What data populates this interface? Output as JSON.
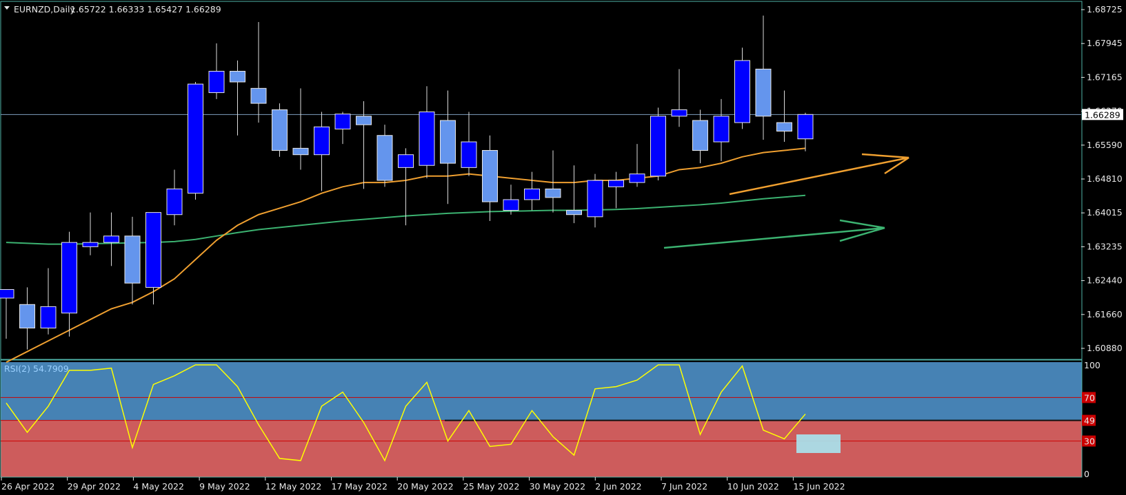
{
  "header": {
    "symbol": "EURNZD,Daily",
    "ohlc": "1.65722 1.66333 1.65427 1.66289"
  },
  "price_axis": {
    "ticks": [
      "1.68725",
      "1.67945",
      "1.67165",
      "1.66370",
      "1.65590",
      "1.64810",
      "1.64015",
      "1.63235",
      "1.62440",
      "1.61660",
      "1.60880"
    ],
    "current_label": "1.66289"
  },
  "rsi": {
    "label": "RSI(2) 54.7909",
    "levels": [
      "100",
      "70",
      "49",
      "30",
      "0"
    ]
  },
  "time_axis": {
    "labels": [
      "26 Apr 2022",
      "29 Apr 2022",
      "4 May 2022",
      "9 May 2022",
      "12 May 2022",
      "17 May 2022",
      "20 May 2022",
      "25 May 2022",
      "30 May 2022",
      "2 Jun 2022",
      "7 Jun 2022",
      "10 Jun 2022",
      "15 Jun 2022"
    ]
  },
  "colors": {
    "background": "#000000",
    "grid_border": "#4fb3a8",
    "bull_candle": "#0000ff",
    "bear_candle": "#6495ed",
    "ma_fast": "#f0a030",
    "ma_slow": "#3cb371",
    "rsi_line": "#ffff00",
    "rsi_upper_zone": "#4682b4",
    "rsi_lower_zone": "#cd5c5c",
    "rsi_level_line": "#cc0000",
    "highlight_box": "#a8e4f0"
  },
  "chart_data": {
    "type": "candlestick",
    "ylim": [
      1.606,
      1.689
    ],
    "candles": [
      {
        "o": 1.62,
        "h": 1.622,
        "l": 1.6105,
        "c": 1.622
      },
      {
        "o": 1.6185,
        "h": 1.6225,
        "l": 1.608,
        "c": 1.613
      },
      {
        "o": 1.613,
        "h": 1.627,
        "l": 1.6115,
        "c": 1.618
      },
      {
        "o": 1.6165,
        "h": 1.6355,
        "l": 1.611,
        "c": 1.633
      },
      {
        "o": 1.632,
        "h": 1.64,
        "l": 1.63,
        "c": 1.633
      },
      {
        "o": 1.633,
        "h": 1.64,
        "l": 1.6275,
        "c": 1.6345
      },
      {
        "o": 1.6345,
        "h": 1.639,
        "l": 1.6185,
        "c": 1.6235
      },
      {
        "o": 1.6225,
        "h": 1.64,
        "l": 1.6185,
        "c": 1.64
      },
      {
        "o": 1.6395,
        "h": 1.65,
        "l": 1.637,
        "c": 1.6455
      },
      {
        "o": 1.6445,
        "h": 1.6705,
        "l": 1.643,
        "c": 1.67
      },
      {
        "o": 1.668,
        "h": 1.6795,
        "l": 1.6665,
        "c": 1.673
      },
      {
        "o": 1.673,
        "h": 1.6755,
        "l": 1.658,
        "c": 1.6705
      },
      {
        "o": 1.669,
        "h": 1.6845,
        "l": 1.661,
        "c": 1.6655
      },
      {
        "o": 1.664,
        "h": 1.6655,
        "l": 1.653,
        "c": 1.6545
      },
      {
        "o": 1.655,
        "h": 1.669,
        "l": 1.65,
        "c": 1.6535
      },
      {
        "o": 1.6535,
        "h": 1.6635,
        "l": 1.645,
        "c": 1.66
      },
      {
        "o": 1.6595,
        "h": 1.6635,
        "l": 1.656,
        "c": 1.663
      },
      {
        "o": 1.6625,
        "h": 1.666,
        "l": 1.6455,
        "c": 1.6605
      },
      {
        "o": 1.658,
        "h": 1.6605,
        "l": 1.646,
        "c": 1.6475
      },
      {
        "o": 1.6505,
        "h": 1.655,
        "l": 1.637,
        "c": 1.6535
      },
      {
        "o": 1.651,
        "h": 1.6695,
        "l": 1.648,
        "c": 1.6635
      },
      {
        "o": 1.6615,
        "h": 1.6685,
        "l": 1.642,
        "c": 1.6515
      },
      {
        "o": 1.6505,
        "h": 1.6635,
        "l": 1.6485,
        "c": 1.6565
      },
      {
        "o": 1.6545,
        "h": 1.658,
        "l": 1.638,
        "c": 1.6425
      },
      {
        "o": 1.6405,
        "h": 1.6465,
        "l": 1.6395,
        "c": 1.643
      },
      {
        "o": 1.643,
        "h": 1.6495,
        "l": 1.6405,
        "c": 1.6455
      },
      {
        "o": 1.6455,
        "h": 1.6545,
        "l": 1.64,
        "c": 1.6435
      },
      {
        "o": 1.6405,
        "h": 1.651,
        "l": 1.6375,
        "c": 1.6395
      },
      {
        "o": 1.639,
        "h": 1.649,
        "l": 1.6365,
        "c": 1.6475
      },
      {
        "o": 1.646,
        "h": 1.6495,
        "l": 1.641,
        "c": 1.6475
      },
      {
        "o": 1.647,
        "h": 1.656,
        "l": 1.646,
        "c": 1.649
      },
      {
        "o": 1.6485,
        "h": 1.6645,
        "l": 1.6475,
        "c": 1.6625
      },
      {
        "o": 1.6625,
        "h": 1.6735,
        "l": 1.66,
        "c": 1.664
      },
      {
        "o": 1.6615,
        "h": 1.664,
        "l": 1.6515,
        "c": 1.6545
      },
      {
        "o": 1.6565,
        "h": 1.6665,
        "l": 1.652,
        "c": 1.6625
      },
      {
        "o": 1.661,
        "h": 1.6785,
        "l": 1.6595,
        "c": 1.6755
      },
      {
        "o": 1.6735,
        "h": 1.686,
        "l": 1.657,
        "c": 1.6625
      },
      {
        "o": 1.661,
        "h": 1.6685,
        "l": 1.6565,
        "c": 1.659
      },
      {
        "o": 1.6572,
        "h": 1.6633,
        "l": 1.6543,
        "c": 1.66289
      }
    ],
    "ma_fast": [
      1.605,
      1.6075,
      1.61,
      1.6125,
      1.615,
      1.6175,
      1.619,
      1.6215,
      1.6245,
      1.629,
      1.6335,
      1.637,
      1.6395,
      1.641,
      1.6425,
      1.6445,
      1.646,
      1.647,
      1.647,
      1.6475,
      1.6485,
      1.6485,
      1.649,
      1.6485,
      1.648,
      1.6475,
      1.647,
      1.647,
      1.6475,
      1.6475,
      1.648,
      1.6485,
      1.65,
      1.6505,
      1.6515,
      1.653,
      1.654,
      1.6545,
      1.655
    ],
    "ma_slow": [
      1.633,
      1.6328,
      1.6326,
      1.6326,
      1.6327,
      1.6328,
      1.6329,
      1.633,
      1.6332,
      1.6337,
      1.6345,
      1.6353,
      1.636,
      1.6365,
      1.637,
      1.6375,
      1.638,
      1.6384,
      1.6388,
      1.6392,
      1.6395,
      1.6398,
      1.64,
      1.6402,
      1.6403,
      1.6404,
      1.6405,
      1.6405,
      1.6406,
      1.6407,
      1.6409,
      1.6412,
      1.6415,
      1.6418,
      1.6422,
      1.6427,
      1.6432,
      1.6436,
      1.644
    ],
    "rsi_ylim": [
      0,
      100
    ],
    "rsi_levels": [
      70,
      49,
      30
    ],
    "rsi": [
      65,
      38,
      62,
      95,
      95,
      97,
      24,
      82,
      90,
      100,
      100,
      80,
      45,
      14,
      12,
      62,
      75,
      47,
      12,
      62,
      84,
      30,
      58,
      25,
      27,
      58,
      34,
      17,
      78,
      80,
      86,
      100,
      100,
      36,
      75,
      99,
      40,
      32,
      54.79
    ]
  }
}
